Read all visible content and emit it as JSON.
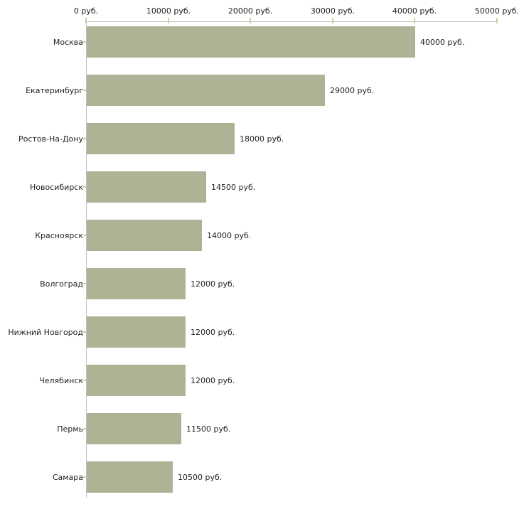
{
  "chart_data": {
    "type": "bar",
    "orientation": "horizontal",
    "title": "",
    "xlabel": "",
    "ylabel": "",
    "xlim": [
      0,
      50000
    ],
    "grid": false,
    "legend": null,
    "unit": "руб.",
    "categories": [
      "Москва",
      "Екатеринбург",
      "Ростов-На-Дону",
      "Новосибирск",
      "Красноярск",
      "Волгоград",
      "Нижний Новгород",
      "Челябинск",
      "Пермь",
      "Самара"
    ],
    "values": [
      40000,
      29000,
      18000,
      14500,
      14000,
      12000,
      12000,
      12000,
      11500,
      10500
    ],
    "value_labels": [
      "40000 руб.",
      "29000 руб.",
      "18000 руб.",
      "14500 руб.",
      "14000 руб.",
      "12000 руб.",
      "12000 руб.",
      "12000 руб.",
      "11500 руб.",
      "10500 руб."
    ],
    "x_ticks": [
      {
        "value": 0,
        "label": "0 руб."
      },
      {
        "value": 10000,
        "label": "10000 руб."
      },
      {
        "value": 20000,
        "label": "20000 руб."
      },
      {
        "value": 30000,
        "label": "30000 руб."
      },
      {
        "value": 40000,
        "label": "40000 руб."
      },
      {
        "value": 50000,
        "label": "50000 руб."
      }
    ],
    "colors": {
      "bar": "#adb395",
      "axis": "#c0c0c0",
      "tick": "#cccca3",
      "text": "#222222",
      "background": "#ffffff"
    }
  }
}
